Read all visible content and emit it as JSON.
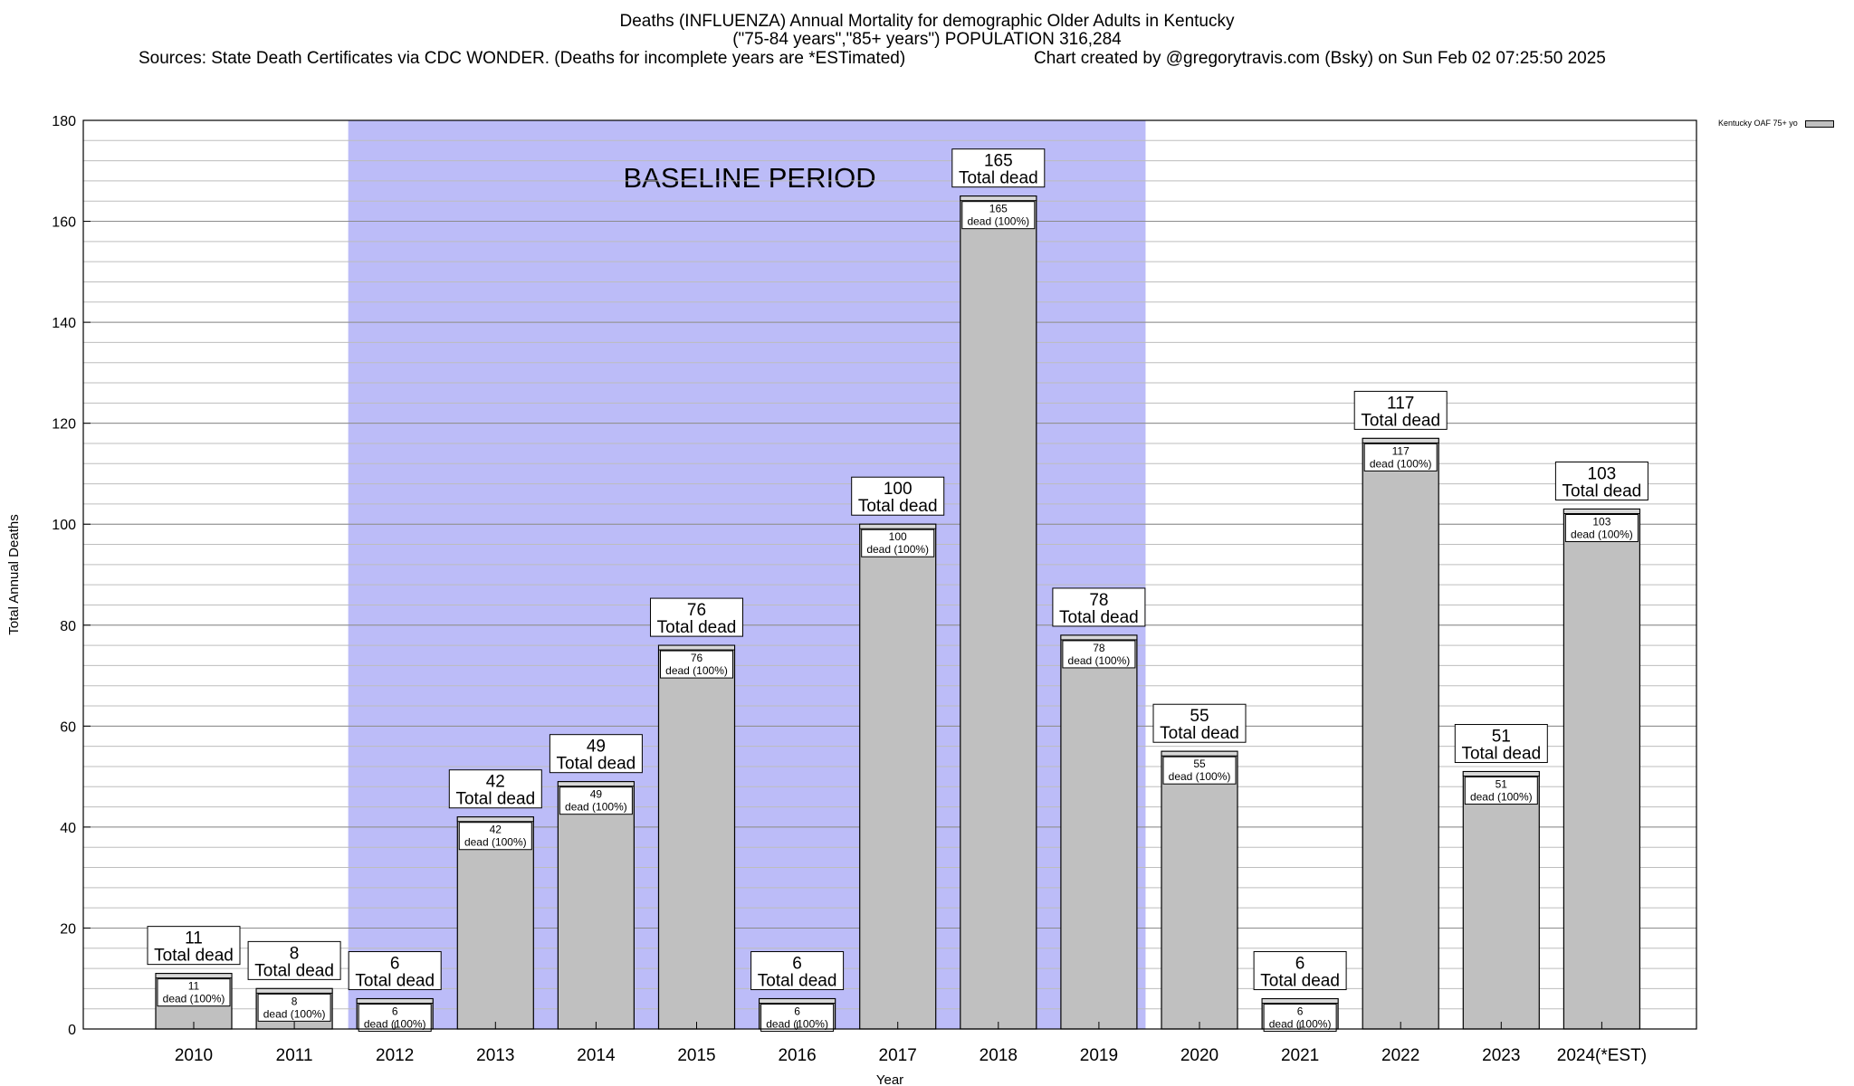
{
  "chart_data": {
    "type": "bar",
    "title": "Deaths (INFLUENZA) Annual Mortality for demographic Older Adults in Kentucky",
    "subtitle": "(\"75-84 years\",\"85+ years\") POPULATION 316,284",
    "source": "Sources: State Death Certificates via CDC WONDER. (Deaths for incomplete years are *ESTimated)",
    "credit": "Chart created by @gregorytravis.com (Bsky) on Sun Feb 02 07:25:50 2025",
    "xlabel": "Year",
    "ylabel": "Total Annual Deaths",
    "ylim": [
      0,
      180
    ],
    "yticks": [
      0,
      20,
      40,
      60,
      80,
      100,
      120,
      140,
      160,
      180
    ],
    "categories": [
      "2010",
      "2011",
      "2012",
      "2013",
      "2014",
      "2015",
      "2016",
      "2017",
      "2018",
      "2019",
      "2020",
      "2021",
      "2022",
      "2023",
      "2024(*EST)"
    ],
    "series": [
      {
        "name": "Kentucky OAF 75+ yo",
        "values": [
          11,
          8,
          6,
          42,
          49,
          76,
          6,
          100,
          165,
          78,
          55,
          6,
          117,
          51,
          103
        ]
      }
    ],
    "total_label": "Total dead",
    "inner_label": "dead (100%)",
    "baseline": {
      "label": "BASELINE PERIOD",
      "from": "2012",
      "to": "2019",
      "color": "#bcbcf8"
    },
    "bar_color": "#c0c0c0",
    "grid": true
  }
}
